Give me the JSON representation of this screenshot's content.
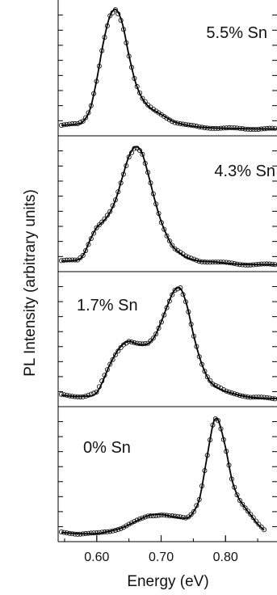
{
  "chart_data": {
    "type": "line",
    "ylabel": "PL Intensity (arbitrary units)",
    "xlabel": "Energy (eV)",
    "xlim": [
      0.54,
      0.88
    ],
    "ylim": [
      0,
      1
    ],
    "x_ticks": [
      {
        "value": 0.6,
        "label": "0.60"
      },
      {
        "value": 0.7,
        "label": "0.70"
      },
      {
        "value": 0.8,
        "label": "0.80"
      }
    ],
    "colors": {
      "fit_line": "#000000",
      "markers": "#000000"
    },
    "grid": false,
    "panels": [
      {
        "label": "5.5% Sn",
        "series": [
          {
            "type": "line+markers",
            "x": [
              0.545,
              0.57,
              0.58,
              0.59,
              0.6,
              0.61,
              0.62,
              0.63,
              0.64,
              0.65,
              0.66,
              0.67,
              0.68,
              0.69,
              0.7,
              0.71,
              0.72,
              0.74,
              0.76,
              0.8,
              0.86,
              0.88
            ],
            "y": [
              0.04,
              0.05,
              0.08,
              0.18,
              0.42,
              0.72,
              0.94,
              1.0,
              0.88,
              0.62,
              0.4,
              0.27,
              0.2,
              0.16,
              0.13,
              0.1,
              0.07,
              0.04,
              0.025,
              0.015,
              0.01,
              0.01
            ]
          }
        ]
      },
      {
        "label": "4.3% Sn",
        "series": [
          {
            "type": "line+markers",
            "x": [
              0.545,
              0.57,
              0.58,
              0.59,
              0.6,
              0.61,
              0.62,
              0.63,
              0.64,
              0.65,
              0.66,
              0.67,
              0.68,
              0.69,
              0.7,
              0.71,
              0.72,
              0.74,
              0.76,
              0.78,
              0.82,
              0.88
            ],
            "y": [
              0.04,
              0.05,
              0.1,
              0.22,
              0.32,
              0.37,
              0.44,
              0.56,
              0.74,
              0.91,
              0.99,
              0.94,
              0.76,
              0.55,
              0.37,
              0.24,
              0.15,
              0.07,
              0.04,
              0.035,
              0.015,
              0.01
            ]
          }
        ]
      },
      {
        "label": "1.7% Sn",
        "series": [
          {
            "type": "line+markers",
            "x": [
              0.545,
              0.56,
              0.58,
              0.6,
              0.62,
              0.63,
              0.64,
              0.65,
              0.66,
              0.67,
              0.68,
              0.69,
              0.7,
              0.71,
              0.72,
              0.73,
              0.74,
              0.75,
              0.76,
              0.77,
              0.78,
              0.8,
              0.84,
              0.88
            ],
            "y": [
              0.05,
              0.04,
              0.04,
              0.07,
              0.3,
              0.4,
              0.47,
              0.5,
              0.48,
              0.47,
              0.48,
              0.54,
              0.66,
              0.8,
              0.92,
              0.94,
              0.8,
              0.56,
              0.36,
              0.22,
              0.14,
              0.08,
              0.03,
              0.02
            ]
          }
        ]
      },
      {
        "label": "0% Sn",
        "series": [
          {
            "type": "line+markers",
            "x": [
              0.545,
              0.57,
              0.6,
              0.62,
              0.64,
              0.66,
              0.68,
              0.7,
              0.72,
              0.74,
              0.75,
              0.76,
              0.77,
              0.78,
              0.785,
              0.79,
              0.8,
              0.81,
              0.82,
              0.83,
              0.84,
              0.85,
              0.86
            ],
            "y": [
              0.03,
              0.02,
              0.02,
              0.04,
              0.07,
              0.12,
              0.17,
              0.18,
              0.16,
              0.15,
              0.2,
              0.32,
              0.62,
              0.92,
              0.98,
              0.95,
              0.74,
              0.47,
              0.32,
              0.24,
              0.17,
              0.1,
              0.05
            ]
          }
        ]
      }
    ]
  }
}
